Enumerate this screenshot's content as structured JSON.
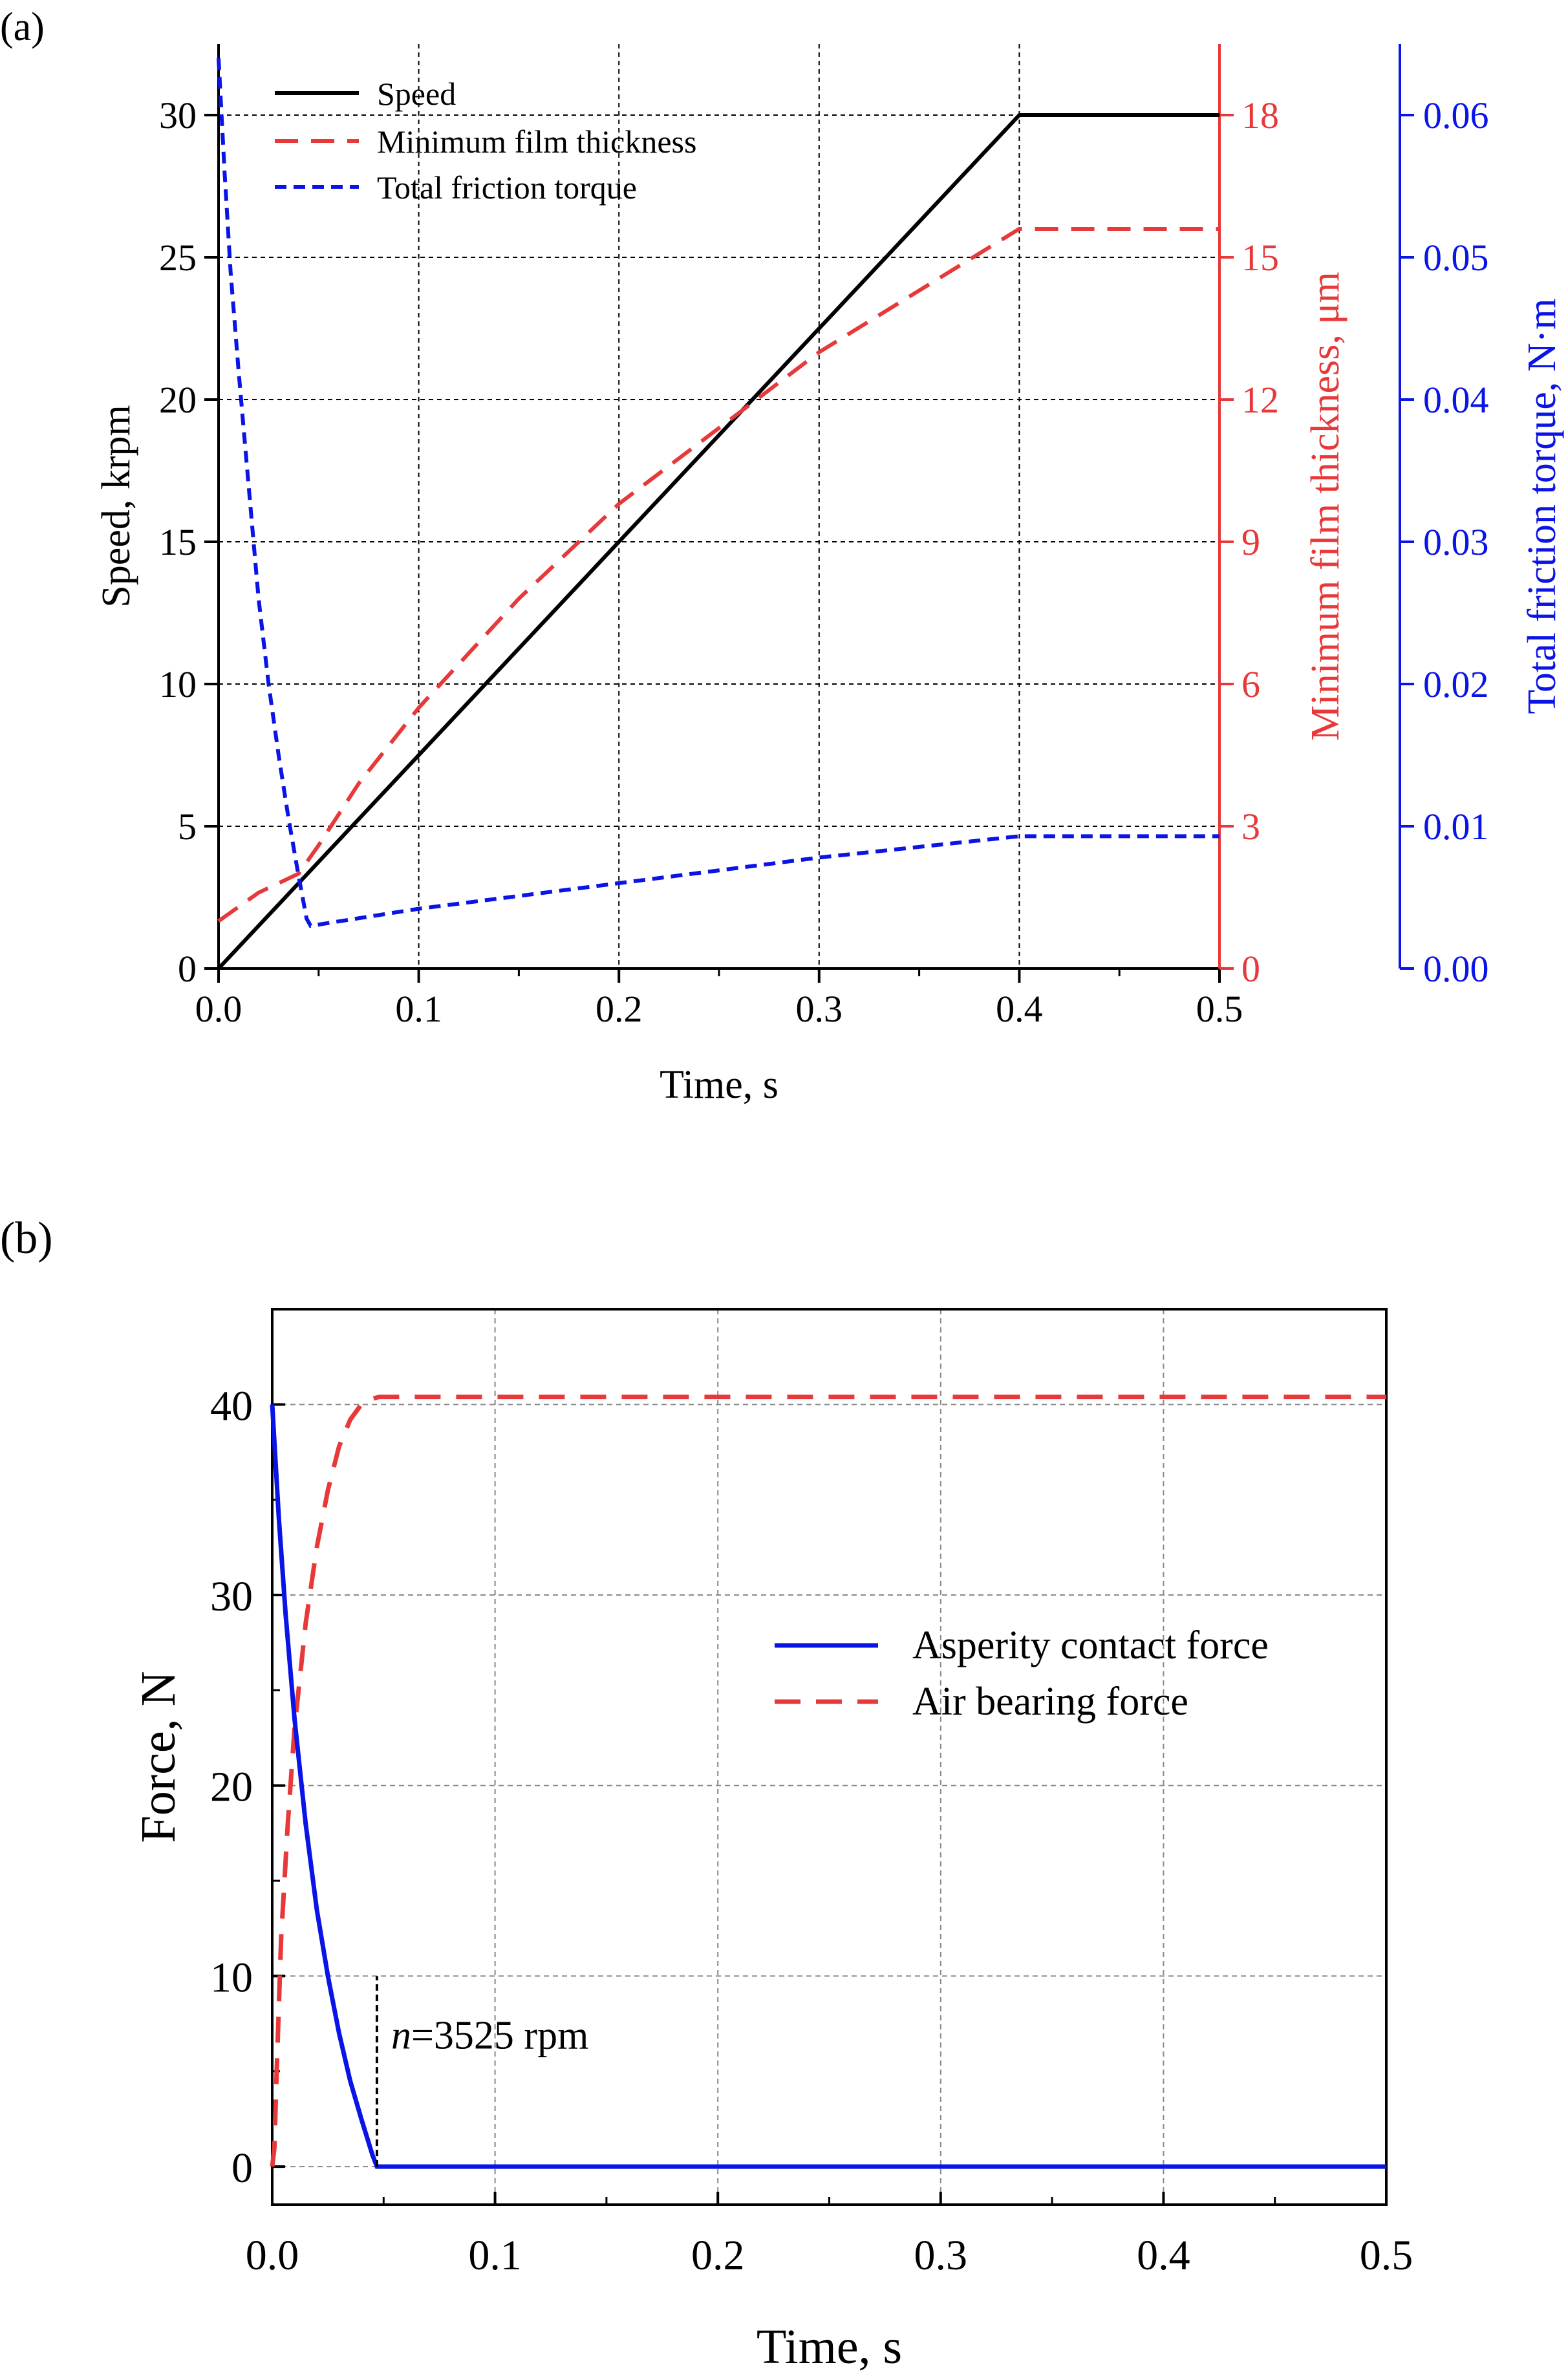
{
  "colors": {
    "black": "#000000",
    "red": "#e8393a",
    "blue": "#0a14e6",
    "grid": "#888888"
  },
  "chart_data": [
    {
      "panel_label": "(a)",
      "type": "line",
      "xlabel": "Time, s",
      "xlim": [
        0,
        0.5
      ],
      "xticks": [
        "0.0",
        "0.1",
        "0.2",
        "0.3",
        "0.4",
        "0.5"
      ],
      "y_left": {
        "label": "Speed, krpm",
        "lim": [
          0,
          32.5
        ],
        "ticks": [
          "0",
          "5",
          "10",
          "15",
          "20",
          "25",
          "30"
        ]
      },
      "y_right1": {
        "label": "Minimum film thickness, μm",
        "lim": [
          0,
          19.5
        ],
        "ticks": [
          "0",
          "3",
          "6",
          "9",
          "12",
          "15",
          "18"
        ]
      },
      "y_right2": {
        "label": "Total friction torque, N·m",
        "lim": [
          0,
          0.065
        ],
        "ticks": [
          "0.00",
          "0.01",
          "0.02",
          "0.03",
          "0.04",
          "0.05",
          "0.06"
        ]
      },
      "legend": [
        "Speed",
        "Minimum film thickness",
        "Total friction torque"
      ],
      "series": [
        {
          "name": "Speed",
          "axis": "left",
          "style": "solid",
          "color": "black",
          "x": [
            0,
            0.4,
            0.5
          ],
          "y": [
            0,
            30,
            30
          ]
        },
        {
          "name": "Minimum film thickness",
          "axis": "right1",
          "style": "dashed",
          "color": "red",
          "x": [
            0,
            0.02,
            0.04,
            0.05,
            0.07,
            0.1,
            0.15,
            0.2,
            0.25,
            0.3,
            0.35,
            0.4,
            0.5
          ],
          "y": [
            1.0,
            1.6,
            2.0,
            2.6,
            3.9,
            5.5,
            7.8,
            9.8,
            11.4,
            13.0,
            14.3,
            15.6,
            15.6
          ]
        },
        {
          "name": "Total friction torque",
          "axis": "right2",
          "style": "dotted",
          "color": "blue",
          "x": [
            0,
            0.003,
            0.006,
            0.01,
            0.015,
            0.02,
            0.025,
            0.03,
            0.035,
            0.04,
            0.044,
            0.046,
            0.1,
            0.2,
            0.3,
            0.4,
            0.5
          ],
          "y": [
            0.064,
            0.056,
            0.049,
            0.042,
            0.034,
            0.026,
            0.02,
            0.015,
            0.0105,
            0.0065,
            0.0035,
            0.003,
            0.0042,
            0.006,
            0.0078,
            0.0093,
            0.0093
          ]
        }
      ]
    },
    {
      "panel_label": "(b)",
      "type": "line",
      "xlabel": "Time, s",
      "ylabel": "Force, N",
      "xlim": [
        0,
        0.5
      ],
      "ylim": [
        -2,
        45
      ],
      "xticks": [
        "0.0",
        "0.1",
        "0.2",
        "0.3",
        "0.4",
        "0.5"
      ],
      "yticks": [
        "0",
        "10",
        "20",
        "30",
        "40"
      ],
      "legend": [
        "Asperity contact force",
        "Air bearing force"
      ],
      "annotation": {
        "italic": "n",
        "text": "=3525 rpm",
        "x": 0.047
      },
      "series": [
        {
          "name": "Asperity contact force",
          "style": "solid",
          "color": "blue",
          "x": [
            0,
            0.003,
            0.006,
            0.01,
            0.015,
            0.02,
            0.025,
            0.03,
            0.035,
            0.04,
            0.045,
            0.047,
            0.5
          ],
          "y": [
            40,
            34,
            29,
            23.5,
            18,
            13.5,
            10,
            7,
            4.5,
            2.5,
            0.6,
            0,
            0
          ]
        },
        {
          "name": "Air bearing force",
          "style": "dashed",
          "color": "red",
          "x": [
            0,
            0.001,
            0.002,
            0.004,
            0.007,
            0.01,
            0.015,
            0.02,
            0.025,
            0.03,
            0.035,
            0.04,
            0.045,
            0.048,
            0.05,
            0.5
          ],
          "y": [
            0,
            1,
            5,
            12,
            18,
            23,
            28.5,
            32.5,
            35.5,
            37.8,
            39.2,
            40.0,
            40.3,
            40.4,
            40.4,
            40.4
          ]
        }
      ]
    }
  ]
}
